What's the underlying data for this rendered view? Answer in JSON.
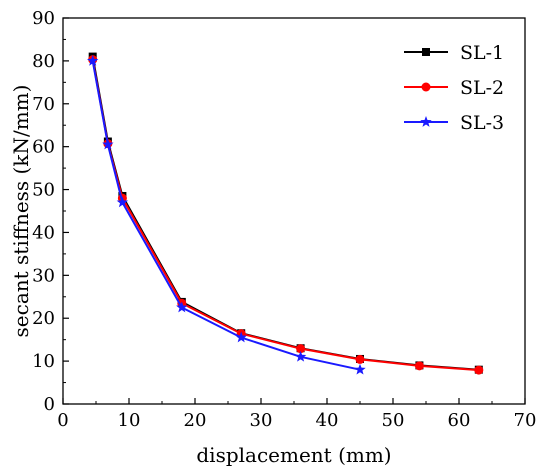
{
  "chart_data": {
    "type": "line",
    "title": "",
    "xlabel": "displacement (mm)",
    "ylabel": "secant stiffness (kN/mm)",
    "xlim": [
      0,
      70
    ],
    "ylim": [
      0,
      90
    ],
    "xticks": [
      0,
      10,
      20,
      30,
      40,
      50,
      60,
      70
    ],
    "yticks": [
      0,
      10,
      20,
      30,
      40,
      50,
      60,
      70,
      80,
      90
    ],
    "grid": false,
    "legend_position": "top-right",
    "series": [
      {
        "name": "SL-1",
        "color": "#000000",
        "marker": "square",
        "x": [
          4.5,
          6.8,
          9.0,
          18.0,
          27.0,
          36.0,
          45.0,
          54.0,
          63.0
        ],
        "y": [
          81.0,
          61.2,
          48.5,
          23.8,
          16.5,
          13.0,
          10.5,
          9.0,
          8.0
        ]
      },
      {
        "name": "SL-2",
        "color": "#ff0000",
        "marker": "circle",
        "x": [
          4.5,
          6.8,
          9.0,
          18.0,
          27.0,
          36.0,
          45.0,
          54.0,
          63.0
        ],
        "y": [
          80.3,
          60.7,
          48.0,
          23.5,
          16.4,
          12.9,
          10.4,
          8.9,
          7.9
        ]
      },
      {
        "name": "SL-3",
        "color": "#1a1aff",
        "marker": "star",
        "x": [
          4.5,
          6.8,
          9.0,
          18.0,
          27.0,
          36.0,
          45.0
        ],
        "y": [
          80.0,
          60.5,
          47.0,
          22.5,
          15.5,
          11.0,
          8.0
        ]
      }
    ]
  }
}
